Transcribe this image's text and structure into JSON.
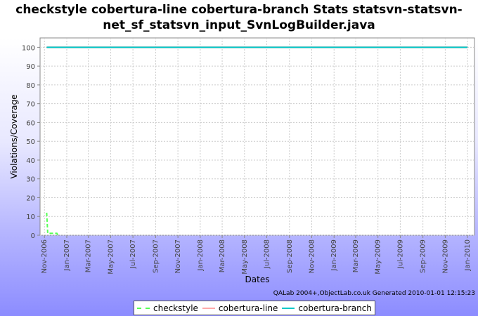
{
  "chart_data": {
    "type": "line",
    "title_lines": [
      "checkstyle cobertura-line cobertura-branch  Stats statsvn-statsvn-",
      "net_sf_statsvn_input_SvnLogBuilder.java"
    ],
    "xlabel": "Dates",
    "ylabel": "Violations/Coverage",
    "ylim": [
      0,
      105
    ],
    "yticks": [
      0,
      10,
      20,
      30,
      40,
      50,
      60,
      70,
      80,
      90,
      100
    ],
    "xlim": [
      "2006-10-20",
      "2010-01-20"
    ],
    "xticks": [
      {
        "date": "2006-11-01",
        "label": "Nov-2006"
      },
      {
        "date": "2007-01-01",
        "label": "Jan-2007"
      },
      {
        "date": "2007-03-01",
        "label": "Mar-2007"
      },
      {
        "date": "2007-05-01",
        "label": "May-2007"
      },
      {
        "date": "2007-07-01",
        "label": "Jul-2007"
      },
      {
        "date": "2007-09-01",
        "label": "Sep-2007"
      },
      {
        "date": "2007-11-01",
        "label": "Nov-2007"
      },
      {
        "date": "2008-01-01",
        "label": "Jan-2008"
      },
      {
        "date": "2008-03-01",
        "label": "Mar-2008"
      },
      {
        "date": "2008-05-01",
        "label": "May-2008"
      },
      {
        "date": "2008-07-01",
        "label": "Jul-2008"
      },
      {
        "date": "2008-09-01",
        "label": "Sep-2008"
      },
      {
        "date": "2008-11-01",
        "label": "Nov-2008"
      },
      {
        "date": "2009-01-01",
        "label": "Jan-2009"
      },
      {
        "date": "2009-03-01",
        "label": "Mar-2009"
      },
      {
        "date": "2009-05-01",
        "label": "May-2009"
      },
      {
        "date": "2009-07-01",
        "label": "Jul-2009"
      },
      {
        "date": "2009-09-01",
        "label": "Sep-2009"
      },
      {
        "date": "2009-11-01",
        "label": "Nov-2009"
      },
      {
        "date": "2010-01-01",
        "label": "Jan-2010"
      }
    ],
    "grid": true,
    "legend_position": "bottom",
    "series": [
      {
        "name": "checkstyle",
        "color": "#55ff55",
        "style": "dashed",
        "points": [
          {
            "x": "2006-11-07",
            "y": 12
          },
          {
            "x": "2006-11-10",
            "y": 1
          },
          {
            "x": "2006-12-05",
            "y": 1
          },
          {
            "x": "2006-12-08",
            "y": 0
          }
        ]
      },
      {
        "name": "cobertura-line",
        "color": "#ffaaaa",
        "style": "solid",
        "points": [
          {
            "x": "2006-11-07",
            "y": 100
          },
          {
            "x": "2010-01-01",
            "y": 100
          }
        ]
      },
      {
        "name": "cobertura-branch",
        "color": "#00c8c8",
        "style": "solid",
        "points": [
          {
            "x": "2006-11-07",
            "y": 100
          },
          {
            "x": "2010-01-01",
            "y": 100
          }
        ]
      }
    ]
  },
  "footer": "QALab 2004+,ObjectLab.co.uk Generated 2010-01-01 12:15:23"
}
